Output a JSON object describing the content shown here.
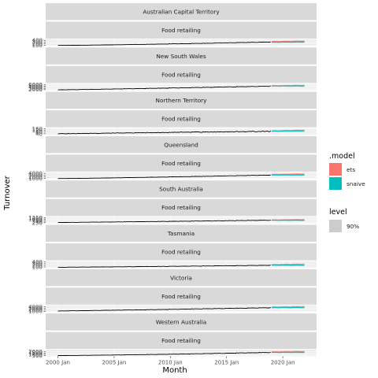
{
  "chart_data": {
    "type": "line",
    "xlabel": "Month",
    "ylabel": "Turnover",
    "x_ticks": [
      "2000 Jan",
      "2005 Jan",
      "2010 Jan",
      "2015 Jan",
      "2020 Jan"
    ],
    "x_range": [
      "2000-01",
      "2021-12"
    ],
    "history_end": "2018-12",
    "forecast_range": [
      "2019-01",
      "2021-12"
    ],
    "grid": true,
    "legend_placement": "right",
    "legend": {
      "model_title": ".model",
      "models": [
        {
          "name": "ets",
          "color": "#F8766D"
        },
        {
          "name": "snaive",
          "color": "#00BFC4"
        }
      ],
      "level_title": "level",
      "levels": [
        {
          "name": "90%",
          "color": "#CCCCCC"
        }
      ]
    },
    "history_color": "#000000",
    "panels": [
      {
        "state": "Australian Capital Territory",
        "industry": "Food retailing",
        "yticks": [
          "100",
          "200",
          "300",
          "400"
        ],
        "ylim": [
          60,
          460
        ],
        "start": 90,
        "end": 300,
        "curve": 1.3,
        "seasonal": 0.04,
        "noise": 0.015,
        "ets": [
          330,
          345
        ],
        "snaive": [
          280,
          300
        ],
        "band": 0.17
      },
      {
        "state": "New South Wales",
        "industry": "Food retailing",
        "yticks": [
          "2000",
          "3000",
          "4000",
          "5000",
          "6000"
        ],
        "ylim": [
          1500,
          6800
        ],
        "start": 1800,
        "end": 4800,
        "curve": 1.1,
        "seasonal": 0.05,
        "noise": 0.01,
        "ets": [
          5100,
          5300
        ],
        "snaive": [
          4900,
          5000
        ],
        "band": 0.13
      },
      {
        "state": "Northern Territory",
        "industry": "Food retailing",
        "yticks": [
          "40",
          "80",
          "120",
          "160"
        ],
        "ylim": [
          20,
          180
        ],
        "start": 40,
        "end": 100,
        "curve": 1.0,
        "seasonal": 0.06,
        "noise": 0.08,
        "ets": [
          110,
          120
        ],
        "snaive": [
          100,
          110
        ],
        "band": 0.2
      },
      {
        "state": "Queensland",
        "industry": "Food retailing",
        "yticks": [
          "1000",
          "2000",
          "3000",
          "4000"
        ],
        "ylim": [
          700,
          4600
        ],
        "start": 900,
        "end": 3000,
        "curve": 1.2,
        "seasonal": 0.04,
        "noise": 0.01,
        "ets": [
          3400,
          3600
        ],
        "snaive": [
          3000,
          3100
        ],
        "band": 0.14
      },
      {
        "state": "South Australia",
        "industry": "Food retailing",
        "yticks": [
          "250",
          "500",
          "750",
          "1000",
          "1250"
        ],
        "ylim": [
          150,
          1450
        ],
        "start": 300,
        "end": 750,
        "curve": 1.1,
        "seasonal": 0.06,
        "noise": 0.02,
        "ets": [
          800,
          830
        ],
        "snaive": [
          740,
          760
        ],
        "band": 0.22
      },
      {
        "state": "Tasmania",
        "industry": "Food retailing",
        "yticks": [
          "100",
          "200",
          "300",
          "400"
        ],
        "ylim": [
          60,
          460
        ],
        "start": 80,
        "end": 200,
        "curve": 1.2,
        "seasonal": 0.07,
        "noise": 0.025,
        "ets": [
          240,
          250
        ],
        "snaive": [
          200,
          210
        ],
        "band": 0.25
      },
      {
        "state": "Victoria",
        "industry": "Food retailing",
        "yticks": [
          "1000",
          "2000",
          "3000",
          "4000"
        ],
        "ylim": [
          600,
          4800
        ],
        "start": 1200,
        "end": 3300,
        "curve": 1.1,
        "seasonal": 0.05,
        "noise": 0.01,
        "ets": [
          3700,
          3900
        ],
        "snaive": [
          3300,
          3400
        ],
        "band": 0.13
      },
      {
        "state": "Western Australia",
        "industry": "Food retailing",
        "yticks": [
          "500",
          "1000",
          "1500",
          "2000"
        ],
        "ylim": [
          300,
          2700
        ],
        "start": 550,
        "end": 1700,
        "curve": 1.3,
        "seasonal": 0.05,
        "noise": 0.015,
        "ets": [
          1900,
          2000
        ],
        "snaive": [
          1700,
          1750
        ],
        "band": 0.16
      }
    ]
  }
}
